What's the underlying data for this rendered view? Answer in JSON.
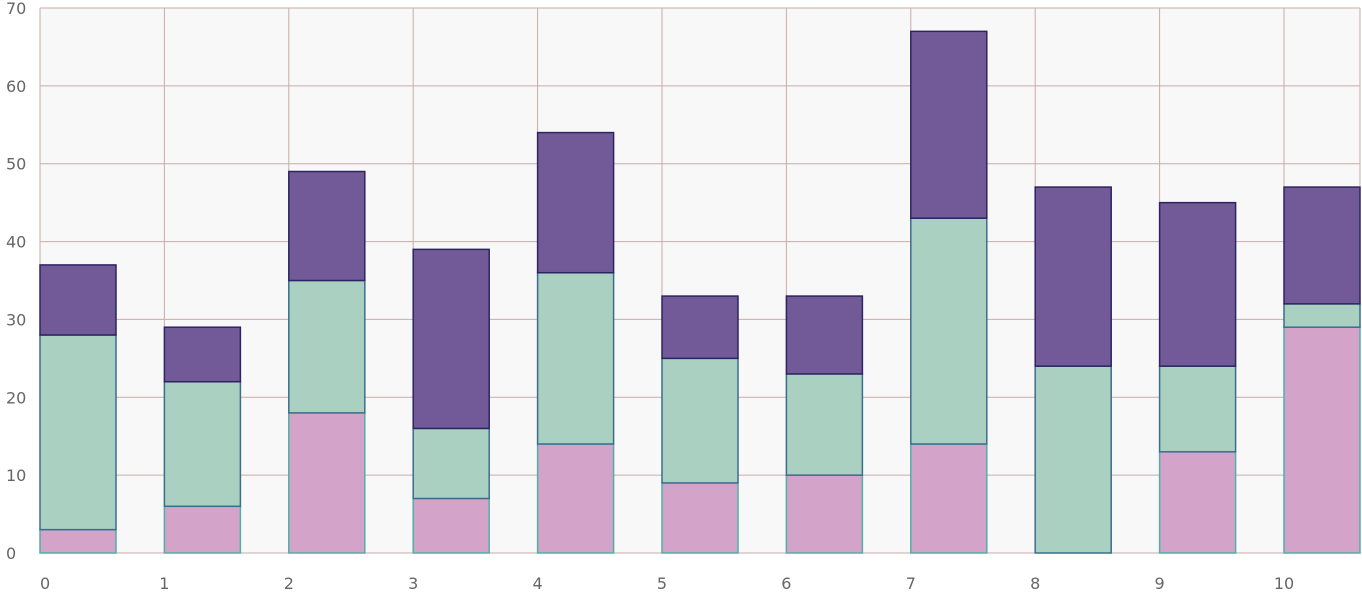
{
  "chart_data": {
    "type": "bar",
    "stacked": true,
    "title": "",
    "xlabel": "",
    "ylabel": "",
    "categories": [
      "0",
      "1",
      "2",
      "3",
      "4",
      "5",
      "6",
      "7",
      "8",
      "9",
      "10"
    ],
    "ylim": [
      0,
      70
    ],
    "yticks": [
      0,
      10,
      20,
      30,
      40,
      50,
      60,
      70
    ],
    "grid": true,
    "legend": "none",
    "colors": {
      "plot_background": "#f9f8f8",
      "grid": "#c8aca8",
      "axis_text": "#666666"
    },
    "series": [
      {
        "values": [
          3,
          6,
          18,
          7,
          14,
          9,
          10,
          14,
          0,
          13,
          29
        ],
        "color": "#d3a3c9",
        "stroke": "#4fb0a3"
      },
      {
        "values": [
          25,
          16,
          17,
          9,
          22,
          16,
          13,
          29,
          24,
          11,
          3
        ],
        "color": "#a9d0c1",
        "stroke": "#3b6e8d"
      },
      {
        "values": [
          9,
          7,
          14,
          23,
          18,
          8,
          10,
          24,
          23,
          21,
          15
        ],
        "color": "#715a97",
        "stroke": "#2c2561"
      }
    ]
  }
}
